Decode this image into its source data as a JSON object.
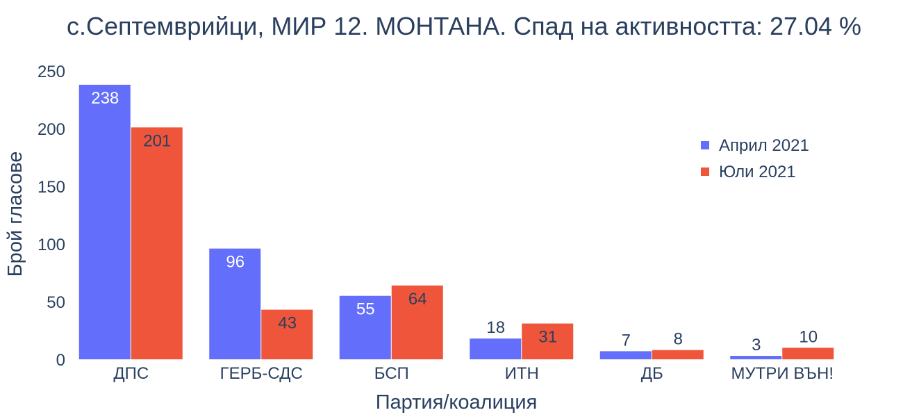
{
  "chart_data": {
    "type": "bar",
    "title": "с.Септемврийци, МИР 12. МОНТАНА. Спад на активността: 27.04 %",
    "xlabel": "Партия/коалиция",
    "ylabel": "Брой гласове",
    "categories": [
      "ДПС",
      "ГЕРБ-СДС",
      "БСП",
      "ИТН",
      "ДБ",
      "МУТРИ ВЪН!"
    ],
    "series": [
      {
        "name": "Април 2021",
        "values": [
          238,
          96,
          55,
          18,
          7,
          3
        ],
        "color": "#636efa"
      },
      {
        "name": "Юли 2021",
        "values": [
          201,
          43,
          64,
          31,
          8,
          10
        ],
        "color": "#ef553b"
      }
    ],
    "ylim": [
      0,
      250
    ],
    "yticks": [
      0,
      50,
      100,
      150,
      200,
      250
    ],
    "grid": false,
    "legend_position": "top-right",
    "label_inside_color": "#ffffff",
    "label_outside_color": "#2a3f5f"
  }
}
